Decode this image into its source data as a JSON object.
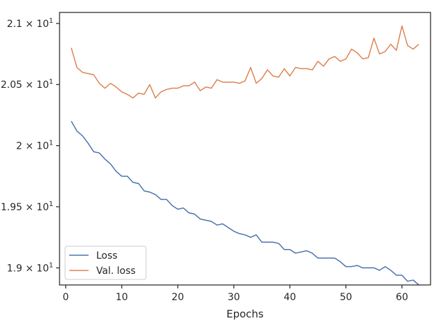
{
  "chart_data": {
    "type": "line",
    "title": "",
    "xlabel": "Epochs",
    "ylabel": "",
    "xlim": [
      -1.1,
      65.1
    ],
    "ylim": [
      18.86,
      21.09
    ],
    "xticks": [
      {
        "value": 0,
        "label": "0"
      },
      {
        "value": 10,
        "label": "10"
      },
      {
        "value": 20,
        "label": "20"
      },
      {
        "value": 30,
        "label": "30"
      },
      {
        "value": 40,
        "label": "40"
      },
      {
        "value": 50,
        "label": "50"
      },
      {
        "value": 60,
        "label": "60"
      }
    ],
    "yticks": [
      {
        "value": 19.0,
        "mantissa": "1.9",
        "base": "10",
        "exp": "1"
      },
      {
        "value": 19.5,
        "mantissa": "1.95",
        "base": "10",
        "exp": "1"
      },
      {
        "value": 20.0,
        "mantissa": "2",
        "base": "10",
        "exp": "1"
      },
      {
        "value": 20.5,
        "mantissa": "2.05",
        "base": "10",
        "exp": "1"
      },
      {
        "value": 21.0,
        "mantissa": "2.1",
        "base": "10",
        "exp": "1"
      }
    ],
    "grid": false,
    "legend_position": "lower-left",
    "x": [
      1,
      2,
      3,
      4,
      5,
      6,
      7,
      8,
      9,
      10,
      11,
      12,
      13,
      14,
      15,
      16,
      17,
      18,
      19,
      20,
      21,
      22,
      23,
      24,
      25,
      26,
      27,
      28,
      29,
      30,
      31,
      32,
      33,
      34,
      35,
      36,
      37,
      38,
      39,
      40,
      41,
      42,
      43,
      44,
      45,
      46,
      47,
      48,
      49,
      50,
      51,
      52,
      53,
      54,
      55,
      56,
      57,
      58,
      59,
      60,
      61,
      62,
      63
    ],
    "series": [
      {
        "name": "Loss",
        "color": "#4c72b0",
        "values": [
          20.2,
          20.12,
          20.08,
          20.02,
          19.95,
          19.94,
          19.89,
          19.85,
          19.79,
          19.75,
          19.75,
          19.7,
          19.69,
          19.63,
          19.62,
          19.6,
          19.56,
          19.56,
          19.51,
          19.48,
          19.49,
          19.45,
          19.44,
          19.4,
          19.39,
          19.38,
          19.35,
          19.36,
          19.33,
          19.3,
          19.28,
          19.27,
          19.25,
          19.27,
          19.21,
          19.21,
          19.21,
          19.2,
          19.15,
          19.15,
          19.12,
          19.13,
          19.14,
          19.12,
          19.08,
          19.08,
          19.08,
          19.08,
          19.05,
          19.01,
          19.01,
          19.02,
          19.0,
          19.0,
          19.0,
          18.98,
          19.01,
          18.98,
          18.94,
          18.94,
          18.89,
          18.9,
          18.86
        ]
      },
      {
        "name": "Val. loss",
        "color": "#dd8452",
        "values": [
          20.8,
          20.64,
          20.6,
          20.59,
          20.58,
          20.51,
          20.47,
          20.51,
          20.48,
          20.44,
          20.42,
          20.39,
          20.43,
          20.42,
          20.5,
          20.39,
          20.44,
          20.46,
          20.47,
          20.47,
          20.49,
          20.49,
          20.52,
          20.45,
          20.48,
          20.47,
          20.54,
          20.52,
          20.52,
          20.52,
          20.51,
          20.53,
          20.64,
          20.51,
          20.55,
          20.62,
          20.57,
          20.56,
          20.63,
          20.57,
          20.64,
          20.63,
          20.63,
          20.62,
          20.69,
          20.65,
          20.71,
          20.73,
          20.69,
          20.71,
          20.79,
          20.76,
          20.71,
          20.72,
          20.88,
          20.75,
          20.77,
          20.83,
          20.78,
          20.98,
          20.82,
          20.79,
          20.83
        ]
      }
    ]
  }
}
